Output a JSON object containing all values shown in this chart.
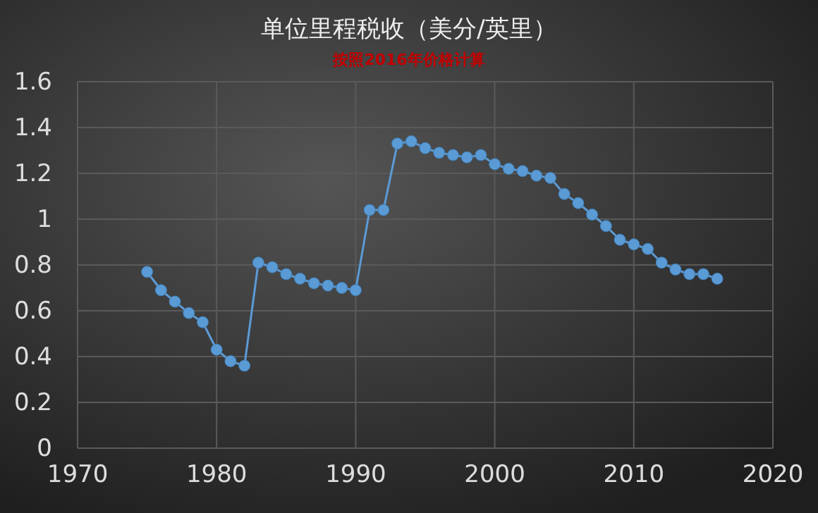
{
  "chart_data": {
    "type": "line",
    "title": "单位里程税收（美分/英里）",
    "subtitle": "按照2016年价格计算",
    "x": [
      1975,
      1976,
      1977,
      1978,
      1979,
      1980,
      1981,
      1982,
      1983,
      1984,
      1985,
      1986,
      1987,
      1988,
      1989,
      1990,
      1991,
      1992,
      1993,
      1994,
      1995,
      1996,
      1997,
      1998,
      1999,
      2000,
      2001,
      2002,
      2003,
      2004,
      2005,
      2006,
      2007,
      2008,
      2009,
      2010,
      2011,
      2012,
      2013,
      2014,
      2015,
      2016
    ],
    "series": [
      {
        "color": "#5b9bd5",
        "values": [
          0.77,
          0.69,
          0.64,
          0.59,
          0.55,
          0.43,
          0.38,
          0.36,
          0.81,
          0.79,
          0.76,
          0.74,
          0.72,
          0.71,
          0.7,
          0.69,
          1.04,
          1.04,
          1.33,
          1.34,
          1.31,
          1.29,
          1.28,
          1.27,
          1.28,
          1.24,
          1.22,
          1.21,
          1.19,
          1.18,
          1.11,
          1.07,
          1.02,
          0.97,
          0.91,
          0.89,
          0.87,
          0.81,
          0.78,
          0.76,
          0.76,
          0.74
        ]
      }
    ],
    "xlim": [
      1970,
      2020
    ],
    "xticks": [
      1970,
      1980,
      1990,
      2000,
      2010,
      2020
    ],
    "ylim": [
      0,
      1.6
    ],
    "yticks": [
      0,
      {
        "value": 0.2,
        "label": "0.2"
      },
      {
        "value": 0.4,
        "label": "0.4"
      },
      {
        "value": 0.6,
        "label": "0.6"
      },
      {
        "value": 0.8,
        "label": "0.8"
      },
      1,
      {
        "value": 1.2,
        "label": "1.2"
      },
      {
        "value": 1.4,
        "label": "1.4"
      },
      {
        "value": 1.6,
        "label": "1.6"
      }
    ],
    "grid": true,
    "marker": "circle",
    "line_style": "solid"
  }
}
